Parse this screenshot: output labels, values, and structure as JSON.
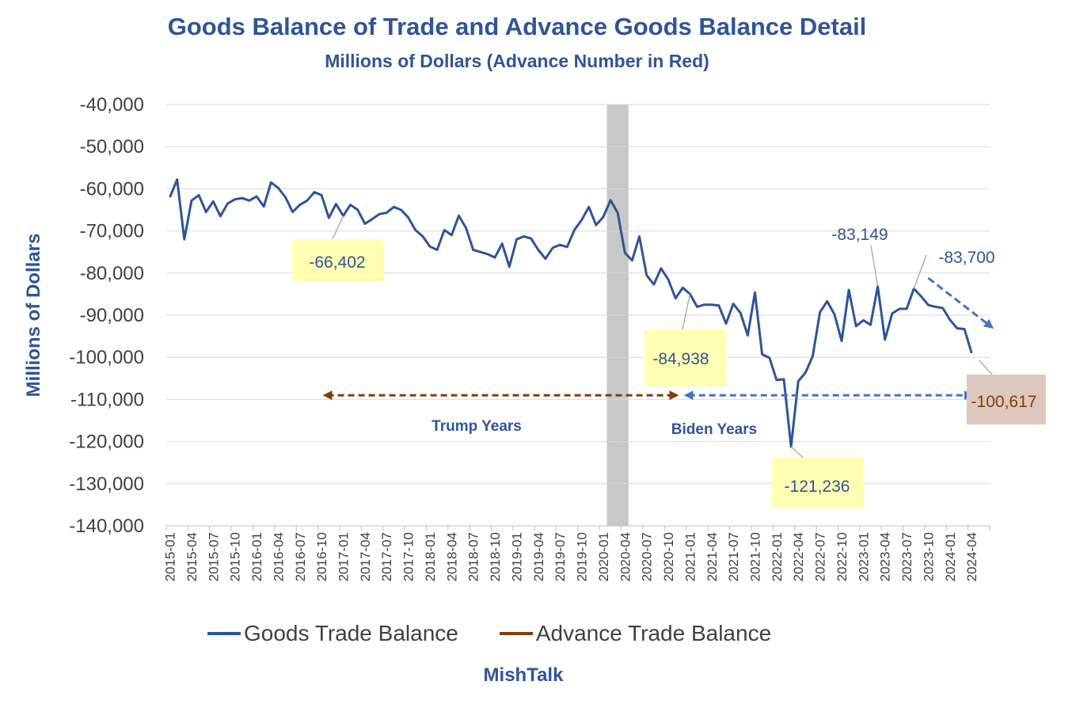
{
  "chart_data": {
    "type": "line",
    "title": "Goods Balance of Trade and Advance Goods Balance Detail",
    "subtitle": "Millions of Dollars  (Advance Number in Red)",
    "xlabel": "",
    "ylabel": "Millions of Dollars",
    "ylim": [
      -140000,
      -40000
    ],
    "grid": true,
    "legend_position": "bottom",
    "y_ticks": [
      -40000,
      -50000,
      -60000,
      -70000,
      -80000,
      -90000,
      -100000,
      -110000,
      -120000,
      -130000,
      -140000
    ],
    "y_tick_labels": [
      "-40,000",
      "-50,000",
      "-60,000",
      "-70,000",
      "-80,000",
      "-90,000",
      "-100,000",
      "-110,000",
      "-120,000",
      "-130,000",
      "-140,000"
    ],
    "x_tick_labels": [
      "2015-01",
      "2015-04",
      "2015-07",
      "2015-10",
      "2016-01",
      "2016-04",
      "2016-07",
      "2016-10",
      "2017-01",
      "2017-04",
      "2017-07",
      "2017-10",
      "2018-01",
      "2018-04",
      "2018-07",
      "2018-10",
      "2019-01",
      "2019-04",
      "2019-07",
      "2019-10",
      "2020-01",
      "2020-04",
      "2020-07",
      "2020-10",
      "2021-01",
      "2021-04",
      "2021-07",
      "2021-10",
      "2022-01",
      "2022-04",
      "2022-07",
      "2022-10",
      "2023-01",
      "2023-04",
      "2023-07",
      "2023-10",
      "2024-01",
      "2024-04"
    ],
    "x_start": "2015-01",
    "series": [
      {
        "name": "Goods Trade Balance",
        "color": "#2f5597",
        "values": [
          -62000,
          -57800,
          -72000,
          -62800,
          -61500,
          -65500,
          -63000,
          -66500,
          -63500,
          -62500,
          -62200,
          -62800,
          -61800,
          -64200,
          -58500,
          -59800,
          -62000,
          -65500,
          -63800,
          -62800,
          -60800,
          -61500,
          -66900,
          -63600,
          -66402,
          -63800,
          -65000,
          -68300,
          -67200,
          -66000,
          -65700,
          -64300,
          -65000,
          -66800,
          -69800,
          -71300,
          -73700,
          -74500,
          -69800,
          -71000,
          -66400,
          -69300,
          -74500,
          -75000,
          -75500,
          -76300,
          -73000,
          -78500,
          -72000,
          -71300,
          -71800,
          -74500,
          -76600,
          -74000,
          -73300,
          -73800,
          -69800,
          -67400,
          -64300,
          -68600,
          -66700,
          -62700,
          -65700,
          -75200,
          -77000,
          -71300,
          -80500,
          -82700,
          -78900,
          -81500,
          -86000,
          -83500,
          -84938,
          -88000,
          -87500,
          -87500,
          -87700,
          -92000,
          -87300,
          -89500,
          -94800,
          -84600,
          -99300,
          -100100,
          -105400,
          -105200,
          -121236,
          -105700,
          -103600,
          -99700,
          -89300,
          -86700,
          -89800,
          -96100,
          -84000,
          -92600,
          -91200,
          -92300,
          -83149,
          -95800,
          -89600,
          -88500,
          -88500,
          -83700,
          -85500,
          -87600,
          -88000,
          -88300,
          -91100,
          -93100,
          -93300,
          -99000
        ]
      },
      {
        "name": "Advance Trade Balance",
        "color": "#843c0c",
        "values": [
          -100617
        ]
      }
    ],
    "recession_band": {
      "start": "2020-02",
      "end": "2020-04",
      "color": "#c8c8c8"
    },
    "annotations": [
      {
        "text": "-66,402",
        "date": "2017-01",
        "value": -66402,
        "box": "#ffffb3",
        "color": "#2f5597"
      },
      {
        "text": "-84,938",
        "date": "2021-01",
        "value": -84938,
        "box": "#ffffb3",
        "color": "#2f5597"
      },
      {
        "text": "-121,236",
        "date": "2022-03",
        "value": -121236,
        "box": "#ffffb3",
        "color": "#2f5597"
      },
      {
        "text": "-83,149",
        "date": "2023-03",
        "value": -83149,
        "box": "",
        "color": "#2f5597"
      },
      {
        "text": "-83,700",
        "date": "2023-08",
        "value": -83700,
        "box": "",
        "color": "#2f5597"
      },
      {
        "text": "-100,617",
        "date": "2024-05",
        "value": -100617,
        "box": "#dcc8bc",
        "color": "#843c0c"
      }
    ],
    "period_arrows": [
      {
        "label": "Trump Years",
        "from": "2016-10",
        "to": "2020-10",
        "value": -109000,
        "color": "#843c0c"
      },
      {
        "label": "Biden Years",
        "from": "2020-12",
        "to": "2024-05",
        "value": -109000,
        "color": "#4472c4"
      }
    ],
    "trend_arrow": {
      "from_date": "2023-10",
      "from_value": -81200,
      "to_date": "2024-05",
      "to_value": -92500,
      "color": "#4472c4"
    }
  },
  "footer": "MishTalk"
}
